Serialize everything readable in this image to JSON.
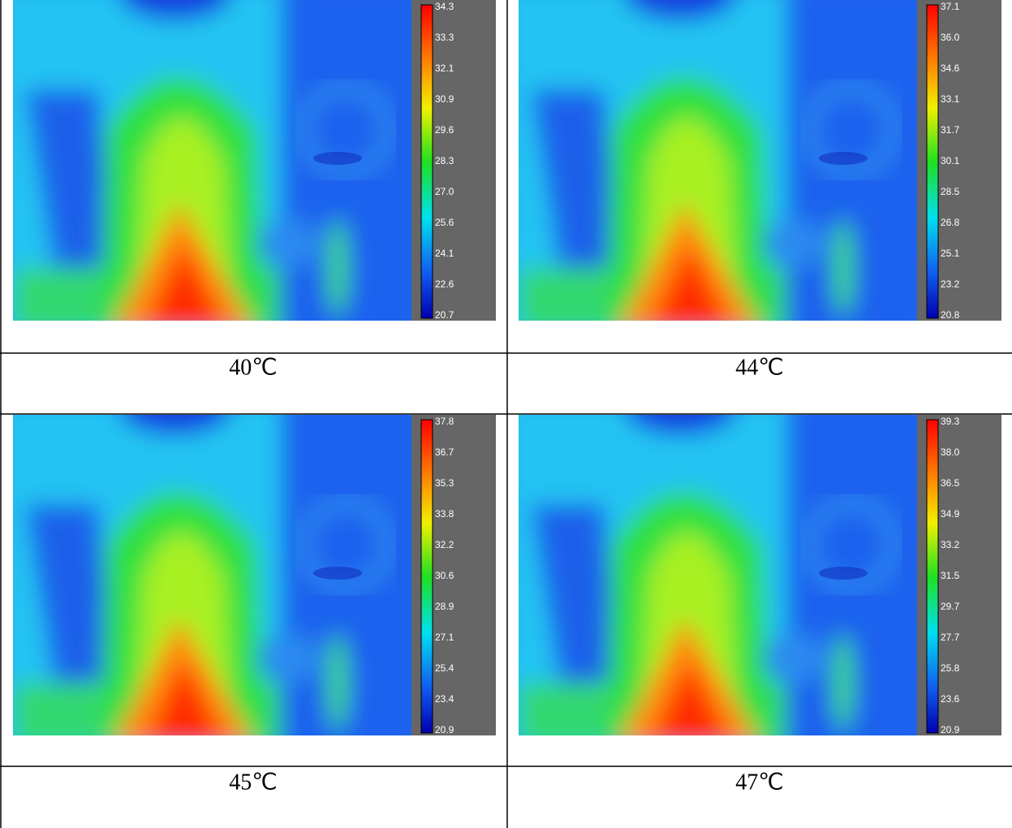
{
  "panels": [
    {
      "colorbar_ticks": [
        "34.3",
        "33.3",
        "32.1",
        "30.9",
        "29.6",
        "28.3",
        "27.0",
        "25.6",
        "24.1",
        "22.6",
        "20.7"
      ],
      "caption": "40℃"
    },
    {
      "colorbar_ticks": [
        "37.1",
        "36.0",
        "34.6",
        "33.1",
        "31.7",
        "30.1",
        "28.5",
        "26.8",
        "25.1",
        "23.2",
        "20.8"
      ],
      "caption": "44℃"
    },
    {
      "colorbar_ticks": [
        "37.8",
        "36.7",
        "35.3",
        "33.8",
        "32.2",
        "30.6",
        "28.9",
        "27.1",
        "25.4",
        "23.4",
        "20.9"
      ],
      "caption": "45℃"
    },
    {
      "colorbar_ticks": [
        "39.3",
        "38.0",
        "36.5",
        "34.9",
        "33.2",
        "31.5",
        "29.7",
        "27.7",
        "25.8",
        "23.6",
        "20.9"
      ],
      "caption": "47℃"
    }
  ]
}
